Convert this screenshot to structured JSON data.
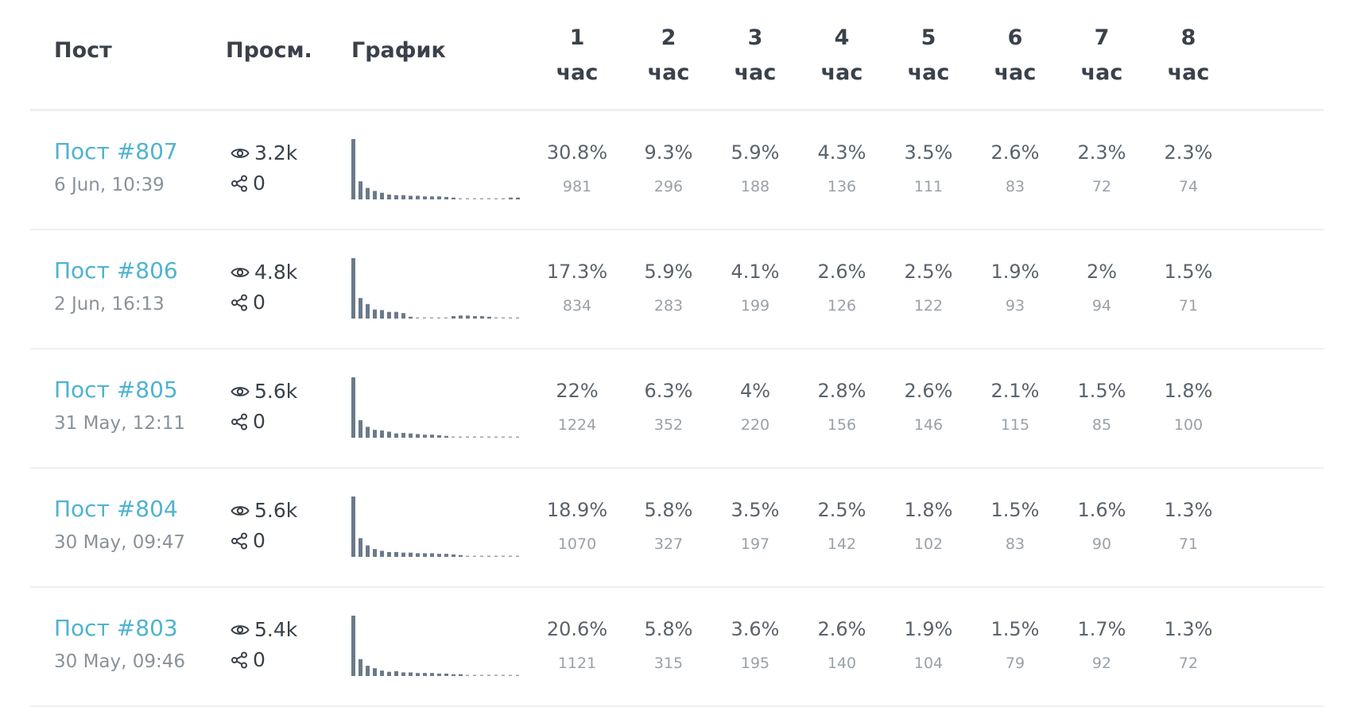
{
  "header": {
    "post": "Пост",
    "views": "Просм.",
    "chart": "График",
    "hours": [
      {
        "num": "1",
        "unit": "час"
      },
      {
        "num": "2",
        "unit": "час"
      },
      {
        "num": "3",
        "unit": "час"
      },
      {
        "num": "4",
        "unit": "час"
      },
      {
        "num": "5",
        "unit": "час"
      },
      {
        "num": "6",
        "unit": "час"
      },
      {
        "num": "7",
        "unit": "час"
      },
      {
        "num": "8",
        "unit": "час"
      }
    ]
  },
  "icons": {
    "views": "eye-icon",
    "shares": "share-icon"
  },
  "colors": {
    "link": "#4fb3d0",
    "bar": "#6b7a8a",
    "dash": "#9aa5b0"
  },
  "rows": [
    {
      "title": "Пост #807",
      "date": "6 Jun, 10:39",
      "views": "3.2k",
      "shares": "0",
      "hours": [
        {
          "pct": "30.8%",
          "count": "981"
        },
        {
          "pct": "9.3%",
          "count": "296"
        },
        {
          "pct": "5.9%",
          "count": "188"
        },
        {
          "pct": "4.3%",
          "count": "136"
        },
        {
          "pct": "3.5%",
          "count": "111"
        },
        {
          "pct": "2.6%",
          "count": "83"
        },
        {
          "pct": "2.3%",
          "count": "72"
        },
        {
          "pct": "2.3%",
          "count": "74"
        }
      ],
      "spark": [
        100,
        30,
        19,
        14,
        11,
        8,
        7,
        7,
        6,
        6,
        5,
        5,
        5,
        4,
        3,
        2,
        2,
        2,
        2,
        2,
        2,
        2,
        3,
        3
      ]
    },
    {
      "title": "Пост #806",
      "date": "2 Jun, 16:13",
      "views": "4.8k",
      "shares": "0",
      "hours": [
        {
          "pct": "17.3%",
          "count": "834"
        },
        {
          "pct": "5.9%",
          "count": "283"
        },
        {
          "pct": "4.1%",
          "count": "199"
        },
        {
          "pct": "2.6%",
          "count": "126"
        },
        {
          "pct": "2.5%",
          "count": "122"
        },
        {
          "pct": "1.9%",
          "count": "93"
        },
        {
          "pct": "2%",
          "count": "94"
        },
        {
          "pct": "1.5%",
          "count": "71"
        }
      ],
      "spark": [
        100,
        34,
        24,
        15,
        14,
        11,
        11,
        9,
        3,
        2,
        2,
        2,
        2,
        2,
        4,
        5,
        5,
        4,
        4,
        3,
        2,
        2,
        2,
        2
      ]
    },
    {
      "title": "Пост #805",
      "date": "31 May, 12:11",
      "views": "5.6k",
      "shares": "0",
      "hours": [
        {
          "pct": "22%",
          "count": "1224"
        },
        {
          "pct": "6.3%",
          "count": "352"
        },
        {
          "pct": "4%",
          "count": "220"
        },
        {
          "pct": "2.8%",
          "count": "156"
        },
        {
          "pct": "2.6%",
          "count": "146"
        },
        {
          "pct": "2.1%",
          "count": "115"
        },
        {
          "pct": "1.5%",
          "count": "85"
        },
        {
          "pct": "1.8%",
          "count": "100"
        }
      ],
      "spark": [
        100,
        29,
        18,
        13,
        12,
        10,
        7,
        8,
        7,
        6,
        5,
        5,
        4,
        3,
        2,
        2,
        2,
        2,
        2,
        2,
        2,
        2,
        2,
        2
      ]
    },
    {
      "title": "Пост #804",
      "date": "30 May, 09:47",
      "views": "5.6k",
      "shares": "0",
      "hours": [
        {
          "pct": "18.9%",
          "count": "1070"
        },
        {
          "pct": "5.8%",
          "count": "327"
        },
        {
          "pct": "3.5%",
          "count": "197"
        },
        {
          "pct": "2.5%",
          "count": "142"
        },
        {
          "pct": "1.8%",
          "count": "102"
        },
        {
          "pct": "1.5%",
          "count": "83"
        },
        {
          "pct": "1.6%",
          "count": "90"
        },
        {
          "pct": "1.3%",
          "count": "71"
        }
      ],
      "spark": [
        100,
        31,
        19,
        13,
        10,
        8,
        8,
        7,
        7,
        6,
        6,
        6,
        5,
        5,
        4,
        3,
        2,
        2,
        2,
        2,
        2,
        2,
        2,
        2
      ]
    },
    {
      "title": "Пост #803",
      "date": "30 May, 09:46",
      "views": "5.4k",
      "shares": "0",
      "hours": [
        {
          "pct": "20.6%",
          "count": "1121"
        },
        {
          "pct": "5.8%",
          "count": "315"
        },
        {
          "pct": "3.6%",
          "count": "195"
        },
        {
          "pct": "2.6%",
          "count": "140"
        },
        {
          "pct": "1.9%",
          "count": "104"
        },
        {
          "pct": "1.5%",
          "count": "79"
        },
        {
          "pct": "1.7%",
          "count": "92"
        },
        {
          "pct": "1.3%",
          "count": "72"
        }
      ],
      "spark": [
        100,
        28,
        17,
        13,
        9,
        7,
        8,
        6,
        6,
        5,
        5,
        5,
        4,
        4,
        3,
        3,
        2,
        2,
        2,
        2,
        2,
        2,
        2,
        2
      ]
    }
  ]
}
